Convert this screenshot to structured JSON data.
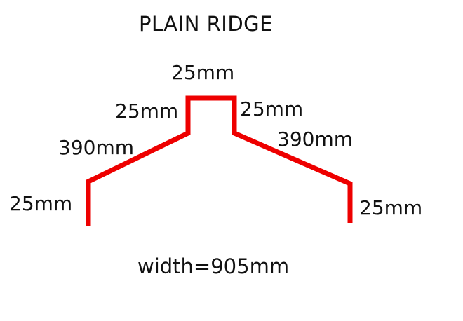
{
  "title": "PLAIN RIDGE",
  "dimensions": {
    "top": "25mm",
    "left_upstand": "25mm",
    "right_upstand": "25mm",
    "left_slope": "390mm",
    "right_slope": "390mm",
    "left_leg": "25mm",
    "right_leg": "25mm"
  },
  "total_width": "width=905mm",
  "colors": {
    "profile": "#ee0000",
    "text": "#111111"
  }
}
